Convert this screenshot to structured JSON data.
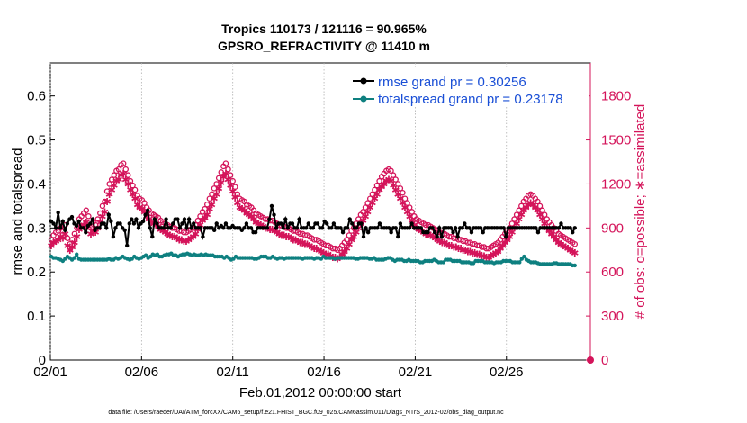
{
  "chart_data": {
    "type": "line",
    "title_line1": "Tropics 110173 / 121116 = 90.965%",
    "title_line2": "GPSRO_REFRACTIVITY @ 11410 m",
    "xlabel": "Feb.01,2012 00:00:00 start",
    "ylabel_left": "rmse and totalspread",
    "ylabel_right": "# of obs: o=possible; ∗=assimilated",
    "xlim": [
      1,
      30.6
    ],
    "ylim_left": [
      0,
      0.675
    ],
    "ylim_right": [
      0,
      2025
    ],
    "x_ticks": [
      1,
      6,
      11,
      16,
      21,
      26
    ],
    "x_tick_labels": [
      "02/01",
      "02/06",
      "02/11",
      "02/16",
      "02/21",
      "02/26"
    ],
    "y_ticks_left": [
      "0",
      "0.1",
      "0.2",
      "0.3",
      "0.4",
      "0.5",
      "0.6"
    ],
    "y_tick_values_left": [
      0,
      0.1,
      0.2,
      0.3,
      0.4,
      0.5,
      0.6
    ],
    "y_ticks_right": [
      "0",
      "300",
      "600",
      "900",
      "1200",
      "1500",
      "1800"
    ],
    "y_tick_values_right": [
      0,
      300,
      600,
      900,
      1200,
      1500,
      1800
    ],
    "legend": [
      {
        "label": "rmse grand pr = 0.30256",
        "color": "#000000"
      },
      {
        "label": "totalspread grand pr = 0.23178",
        "color": "#0e8080"
      }
    ],
    "series": [
      {
        "name": "rmse",
        "axis": "left",
        "color": "#000000",
        "values": [
          0.315,
          0.31,
          0.3,
          0.335,
          0.3,
          0.315,
          0.295,
          0.31,
          0.32,
          0.325,
          0.31,
          0.305,
          0.315,
          0.3,
          0.3,
          0.29,
          0.305,
          0.31,
          0.32,
          0.295,
          0.3,
          0.3,
          0.31,
          0.31,
          0.3,
          0.33,
          0.315,
          0.28,
          0.3,
          0.31,
          0.31,
          0.3,
          0.295,
          0.26,
          0.31,
          0.32,
          0.31,
          0.32,
          0.3,
          0.31,
          0.315,
          0.33,
          0.34,
          0.3,
          0.28,
          0.32,
          0.31,
          0.3,
          0.3,
          0.3,
          0.32,
          0.3,
          0.3,
          0.31,
          0.32,
          0.32,
          0.3,
          0.31,
          0.32,
          0.3,
          0.32,
          0.3,
          0.31,
          0.3,
          0.3,
          0.3,
          0.28,
          0.3,
          0.3,
          0.3,
          0.3,
          0.295,
          0.31,
          0.3,
          0.305,
          0.3,
          0.31,
          0.3,
          0.3,
          0.305,
          0.3,
          0.3,
          0.3,
          0.295,
          0.3,
          0.31,
          0.3,
          0.3,
          0.29,
          0.29,
          0.3,
          0.3,
          0.3,
          0.3,
          0.3,
          0.32,
          0.35,
          0.33,
          0.3,
          0.31,
          0.31,
          0.3,
          0.32,
          0.3,
          0.31,
          0.31,
          0.3,
          0.3,
          0.32,
          0.3,
          0.3,
          0.3,
          0.31,
          0.3,
          0.3,
          0.31,
          0.31,
          0.3,
          0.3,
          0.315,
          0.31,
          0.3,
          0.3,
          0.31,
          0.3,
          0.3,
          0.3,
          0.29,
          0.3,
          0.3,
          0.32,
          0.31,
          0.3,
          0.3,
          0.31,
          0.31,
          0.28,
          0.3,
          0.29,
          0.3,
          0.3,
          0.3,
          0.3,
          0.31,
          0.3,
          0.3,
          0.3,
          0.3,
          0.29,
          0.3,
          0.3,
          0.28,
          0.31,
          0.3,
          0.3,
          0.3,
          0.3,
          0.31,
          0.3,
          0.3,
          0.3,
          0.3,
          0.29,
          0.29,
          0.29,
          0.3,
          0.3,
          0.29,
          0.28,
          0.3,
          0.28,
          0.3,
          0.3,
          0.3,
          0.3,
          0.29,
          0.3,
          0.28,
          0.3,
          0.3,
          0.31,
          0.3,
          0.3,
          0.29,
          0.3,
          0.3,
          0.3,
          0.3,
          0.29,
          0.3,
          0.3,
          0.3,
          0.3,
          0.3,
          0.3,
          0.3,
          0.3,
          0.3,
          0.28,
          0.3,
          0.3,
          0.3,
          0.3,
          0.3,
          0.3,
          0.3,
          0.3,
          0.3,
          0.3,
          0.3,
          0.3,
          0.3,
          0.29,
          0.3,
          0.3,
          0.3,
          0.3,
          0.3,
          0.3,
          0.3,
          0.3,
          0.3,
          0.31,
          0.3,
          0.3,
          0.3,
          0.3,
          0.29,
          0.3
        ]
      },
      {
        "name": "totalspread",
        "axis": "left",
        "color": "#0e8080",
        "values": [
          0.235,
          0.232,
          0.232,
          0.23,
          0.228,
          0.225,
          0.23,
          0.235,
          0.232,
          0.228,
          0.232,
          0.24,
          0.23,
          0.228,
          0.228,
          0.228,
          0.228,
          0.228,
          0.228,
          0.228,
          0.228,
          0.228,
          0.228,
          0.228,
          0.228,
          0.23,
          0.228,
          0.228,
          0.232,
          0.23,
          0.232,
          0.235,
          0.232,
          0.23,
          0.228,
          0.23,
          0.235,
          0.232,
          0.23,
          0.232,
          0.235,
          0.238,
          0.232,
          0.235,
          0.24,
          0.238,
          0.24,
          0.235,
          0.235,
          0.238,
          0.24,
          0.24,
          0.242,
          0.238,
          0.238,
          0.235,
          0.238,
          0.24,
          0.24,
          0.242,
          0.24,
          0.238,
          0.24,
          0.238,
          0.238,
          0.24,
          0.238,
          0.24,
          0.238,
          0.238,
          0.238,
          0.235,
          0.235,
          0.235,
          0.235,
          0.232,
          0.235,
          0.232,
          0.228,
          0.23,
          0.235,
          0.232,
          0.232,
          0.232,
          0.232,
          0.232,
          0.232,
          0.232,
          0.23,
          0.23,
          0.232,
          0.235,
          0.235,
          0.235,
          0.232,
          0.232,
          0.235,
          0.232,
          0.23,
          0.232,
          0.232,
          0.23,
          0.232,
          0.232,
          0.232,
          0.232,
          0.232,
          0.232,
          0.232,
          0.23,
          0.232,
          0.232,
          0.232,
          0.232,
          0.23,
          0.232,
          0.232,
          0.23,
          0.235,
          0.232,
          0.232,
          0.232,
          0.232,
          0.23,
          0.232,
          0.232,
          0.232,
          0.232,
          0.232,
          0.232,
          0.232,
          0.232,
          0.23,
          0.23,
          0.232,
          0.232,
          0.232,
          0.232,
          0.23,
          0.23,
          0.232,
          0.228,
          0.228,
          0.228,
          0.228,
          0.23,
          0.232,
          0.232,
          0.228,
          0.225,
          0.228,
          0.228,
          0.228,
          0.225,
          0.225,
          0.228,
          0.225,
          0.225,
          0.225,
          0.225,
          0.222,
          0.222,
          0.225,
          0.225,
          0.225,
          0.225,
          0.228,
          0.225,
          0.222,
          0.222,
          0.222,
          0.228,
          0.228,
          0.228,
          0.225,
          0.225,
          0.225,
          0.225,
          0.222,
          0.222,
          0.222,
          0.222,
          0.22,
          0.22,
          0.225,
          0.225,
          0.225,
          0.225,
          0.222,
          0.222,
          0.222,
          0.222,
          0.22,
          0.222,
          0.222,
          0.222,
          0.225,
          0.225,
          0.225,
          0.225,
          0.222,
          0.222,
          0.222,
          0.222,
          0.23,
          0.235,
          0.228,
          0.225,
          0.222,
          0.222,
          0.222,
          0.22,
          0.218,
          0.218,
          0.218,
          0.218,
          0.218,
          0.218,
          0.22,
          0.22,
          0.218,
          0.218,
          0.218,
          0.218,
          0.218,
          0.218,
          0.215,
          0.215
        ]
      },
      {
        "name": "possible",
        "axis": "right",
        "marker": "o",
        "color": "#d4145a",
        "values": [
          820,
          850,
          870,
          880,
          900,
          880,
          920,
          830,
          790,
          820,
          860,
          900,
          960,
          980,
          1000,
          1020,
          980,
          900,
          940,
          920,
          960,
          1000,
          1050,
          1080,
          1150,
          1200,
          1230,
          1260,
          1290,
          1300,
          1330,
          1340,
          1300,
          1260,
          1220,
          1190,
          1160,
          1120,
          1100,
          1090,
          1070,
          1040,
          1020,
          1000,
          990,
          980,
          970,
          950,
          940,
          930,
          920,
          910,
          900,
          900,
          890,
          880,
          880,
          870,
          870,
          880,
          890,
          900,
          920,
          950,
          980,
          1010,
          1030,
          1060,
          1100,
          1130,
          1170,
          1200,
          1240,
          1280,
          1320,
          1340,
          1300,
          1260,
          1220,
          1180,
          1130,
          1100,
          1090,
          1080,
          1060,
          1050,
          1040,
          1020,
          1000,
          990,
          980,
          970,
          960,
          960,
          950,
          950,
          940,
          930,
          920,
          910,
          910,
          900,
          900,
          890,
          880,
          880,
          870,
          860,
          860,
          850,
          850,
          840,
          830,
          820,
          820,
          810,
          800,
          790,
          780,
          780,
          770,
          760,
          760,
          750,
          760,
          780,
          800,
          820,
          850,
          880,
          900,
          930,
          960,
          990,
          1010,
          1040,
          1070,
          1100,
          1130,
          1160,
          1190,
          1220,
          1250,
          1270,
          1290,
          1300,
          1290,
          1260,
          1230,
          1200,
          1170,
          1140,
          1100,
          1070,
          1040,
          1010,
          980,
          960,
          950,
          940,
          930,
          920,
          920,
          910,
          900,
          890,
          880,
          870,
          860,
          860,
          850,
          840,
          840,
          830,
          830,
          820,
          820,
          810,
          810,
          800,
          800,
          790,
          790,
          780,
          780,
          770,
          770,
          760,
          760,
          770,
          780,
          790,
          800,
          820,
          840,
          860,
          880,
          900,
          930,
          960,
          990,
          1020,
          1050,
          1080,
          1100,
          1120,
          1130,
          1120,
          1100,
          1080,
          1050,
          1020,
          990,
          960,
          940,
          920,
          900,
          880,
          860,
          850,
          840,
          830,
          820,
          810,
          800,
          790
        ]
      },
      {
        "name": "assimilated",
        "axis": "right",
        "marker": "*",
        "color": "#d4145a",
        "values": [
          780,
          800,
          810,
          820,
          840,
          830,
          860,
          780,
          750,
          770,
          800,
          840,
          890,
          910,
          920,
          940,
          910,
          860,
          880,
          870,
          900,
          940,
          980,
          1010,
          1080,
          1130,
          1160,
          1190,
          1220,
          1230,
          1260,
          1270,
          1230,
          1200,
          1160,
          1130,
          1100,
          1060,
          1040,
          1030,
          1010,
          980,
          960,
          940,
          930,
          920,
          910,
          890,
          880,
          870,
          860,
          850,
          840,
          840,
          830,
          820,
          820,
          810,
          810,
          820,
          830,
          840,
          860,
          890,
          920,
          950,
          970,
          990,
          1030,
          1060,
          1100,
          1130,
          1170,
          1210,
          1250,
          1270,
          1230,
          1190,
          1150,
          1110,
          1070,
          1040,
          1030,
          1020,
          1000,
          990,
          980,
          960,
          940,
          930,
          920,
          910,
          900,
          900,
          890,
          890,
          880,
          870,
          860,
          850,
          850,
          840,
          840,
          830,
          820,
          820,
          810,
          800,
          800,
          790,
          790,
          780,
          770,
          760,
          760,
          750,
          740,
          730,
          720,
          720,
          710,
          700,
          700,
          690,
          700,
          720,
          740,
          760,
          790,
          820,
          840,
          870,
          900,
          930,
          950,
          980,
          1010,
          1040,
          1070,
          1100,
          1130,
          1160,
          1180,
          1200,
          1220,
          1230,
          1220,
          1190,
          1160,
          1130,
          1100,
          1070,
          1040,
          1010,
          980,
          950,
          920,
          900,
          890,
          880,
          870,
          860,
          860,
          850,
          840,
          830,
          820,
          810,
          800,
          800,
          790,
          780,
          780,
          770,
          770,
          760,
          760,
          750,
          750,
          740,
          740,
          730,
          730,
          720,
          720,
          710,
          710,
          700,
          700,
          710,
          720,
          730,
          740,
          760,
          780,
          800,
          820,
          840,
          870,
          900,
          930,
          960,
          990,
          1020,
          1040,
          1060,
          1070,
          1060,
          1040,
          1020,
          990,
          960,
          930,
          900,
          880,
          860,
          840,
          820,
          800,
          790,
          780,
          770,
          760,
          750,
          740,
          730
        ]
      }
    ]
  },
  "footer": "data file: /Users/raeder/DAI/ATM_forcXX/CAM6_setup/f.e21.FHIST_BGC.f09_025.CAM6assim.011/Diags_NTrS_2012-02/obs_diag_output.nc"
}
